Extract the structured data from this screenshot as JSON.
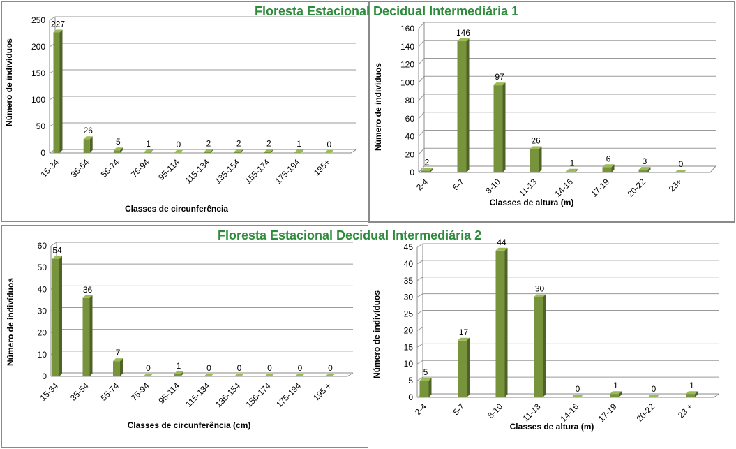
{
  "sections": [
    {
      "title": "Floresta Estacional Decidual Intermediária 1"
    },
    {
      "title": "Floresta Estacional Decidual Intermediária 2"
    }
  ],
  "colors": {
    "bar_front": "#77933c",
    "bar_side": "#4f6228",
    "bar_top": "#9bbb59",
    "title": "#2e8b3c"
  },
  "chart_data": [
    {
      "type": "bar",
      "categories": [
        "15-34",
        "35-54",
        "55-74",
        "75-94",
        "95-114",
        "115-134",
        "135-154",
        "155-174",
        "175-194",
        "195+"
      ],
      "values": [
        227,
        26,
        5,
        1,
        0,
        2,
        2,
        2,
        1,
        0
      ],
      "xlabel": "Classes de circunferência",
      "ylabel": "Número de indivíduos",
      "ylim": [
        0,
        250
      ],
      "yticks": [
        0,
        50,
        100,
        150,
        200,
        250
      ],
      "grid": true,
      "legend": "none"
    },
    {
      "type": "bar",
      "categories": [
        "2-4",
        "5-7",
        "8-10",
        "11-13",
        "14-16",
        "17-19",
        "20-22",
        "23+"
      ],
      "values": [
        2,
        146,
        97,
        26,
        1,
        6,
        3,
        0
      ],
      "xlabel": "Classes de altura (m)",
      "ylabel": "Número de indivíduos",
      "ylim": [
        0,
        160
      ],
      "yticks": [
        0,
        20,
        40,
        60,
        80,
        100,
        120,
        140,
        160
      ],
      "grid": true,
      "legend": "none"
    },
    {
      "type": "bar",
      "categories": [
        "15-34",
        "35-54",
        "55-74",
        "75-94",
        "95-114",
        "115-134",
        "135-154",
        "155-174",
        "175-194",
        "195 +"
      ],
      "values": [
        54,
        36,
        7,
        0,
        1,
        0,
        0,
        0,
        0,
        0
      ],
      "xlabel": "Classes de circunferência (cm)",
      "ylabel": "Número de indivíduos",
      "ylim": [
        0,
        60
      ],
      "yticks": [
        0,
        10,
        20,
        30,
        40,
        50,
        60
      ],
      "grid": true,
      "legend": "none"
    },
    {
      "type": "bar",
      "categories": [
        "2-4",
        "5-7",
        "8-10",
        "11-13",
        "14-16",
        "17-19",
        "20-22",
        "23 +"
      ],
      "values": [
        5,
        17,
        44,
        30,
        0,
        1,
        0,
        1
      ],
      "xlabel": "Classes de altura (m)",
      "ylabel": "Número de indivíduos",
      "ylim": [
        0,
        45
      ],
      "yticks": [
        0,
        5,
        10,
        15,
        20,
        25,
        30,
        35,
        40,
        45
      ],
      "grid": true,
      "legend": "none"
    }
  ]
}
